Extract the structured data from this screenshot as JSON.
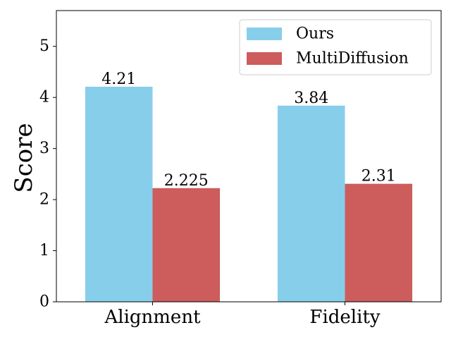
{
  "chart_data": {
    "type": "bar",
    "title": "",
    "xlabel": "",
    "ylabel": "Score",
    "categories": [
      "Alignment",
      "Fidelity"
    ],
    "series": [
      {
        "name": "Ours",
        "color": "#87ceeb",
        "values": [
          4.21,
          3.84
        ],
        "labels": [
          "4.21",
          "3.84"
        ]
      },
      {
        "name": "MultiDiffusion",
        "color": "#cd5c5c",
        "values": [
          2.225,
          2.31
        ],
        "labels": [
          "2.225",
          "2.31"
        ]
      }
    ],
    "ylim": [
      0,
      5.7
    ],
    "yticks": [
      0,
      1,
      2,
      3,
      4,
      5
    ],
    "grid": false,
    "legend_position": "top-right"
  }
}
